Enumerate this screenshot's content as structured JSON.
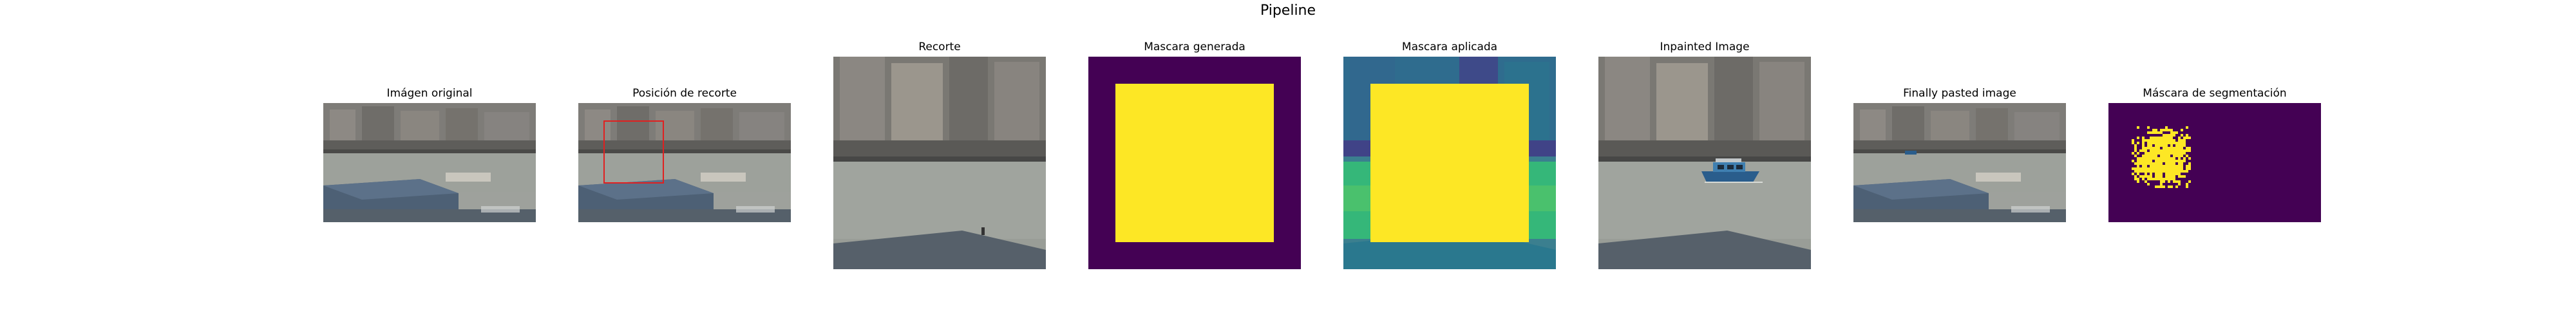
{
  "figure": {
    "title": "Pipeline"
  },
  "panels": [
    {
      "id": "original",
      "title": "Imágen original"
    },
    {
      "id": "crop-position",
      "title": "Posición de recorte"
    },
    {
      "id": "crop",
      "title": "Recorte"
    },
    {
      "id": "generated-mask",
      "title": "Mascara generada"
    },
    {
      "id": "applied-mask",
      "title": "Mascara aplicada"
    },
    {
      "id": "inpainted",
      "title": "Inpainted Image"
    },
    {
      "id": "pasted",
      "title": "Finally pasted image"
    },
    {
      "id": "segmentation",
      "title": "Máscara de segmentación"
    }
  ],
  "colors": {
    "mask_background": "#440154",
    "mask_foreground": "#fde725",
    "crop_box": "#e02020",
    "water": "#9a9e98",
    "sky_building": "#7c7b78",
    "dock_roof": "#4e6277",
    "boat": "#2a5d8c"
  }
}
